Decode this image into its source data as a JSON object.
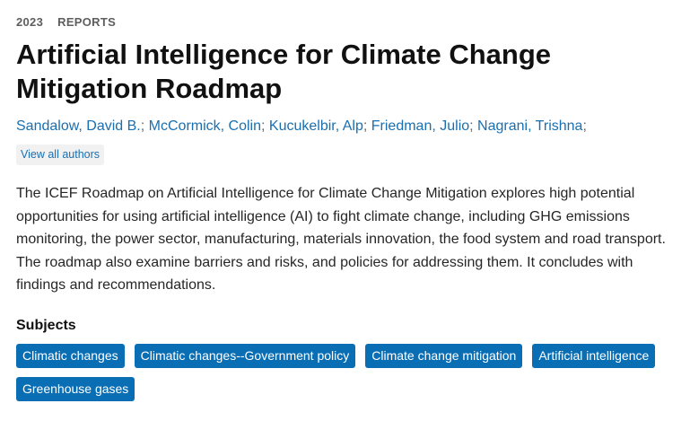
{
  "meta": {
    "year": "2023",
    "category": "REPORTS"
  },
  "title": "Artificial Intelligence for Climate Change Mitigation Roadmap",
  "authors": [
    "Sandalow, David B.",
    "McCormick, Colin",
    "Kucukelbir, Alp",
    "Friedman, Julio",
    "Nagrani, Trishna"
  ],
  "author_separator": ";",
  "view_all_label": "View all authors",
  "abstract": "The ICEF Roadmap on Artificial Intelligence for Climate Change Mitigation explores high potential opportunities for using artificial intelligence (AI) to fight climate change, including GHG emissions monitoring, the power sector, manufacturing, materials innovation, the food system and road transport. The roadmap also examine barriers and risks, and policies for addressing them. It concludes with findings and recommendations.",
  "subjects": {
    "heading": "Subjects",
    "tags": [
      "Climatic changes",
      "Climatic changes--Government policy",
      "Climate change mitigation",
      "Artificial intelligence",
      "Greenhouse gases"
    ]
  },
  "colors": {
    "link": "#1a6fb0",
    "tag_background": "#0a6eb4",
    "tag_text": "#ffffff"
  }
}
